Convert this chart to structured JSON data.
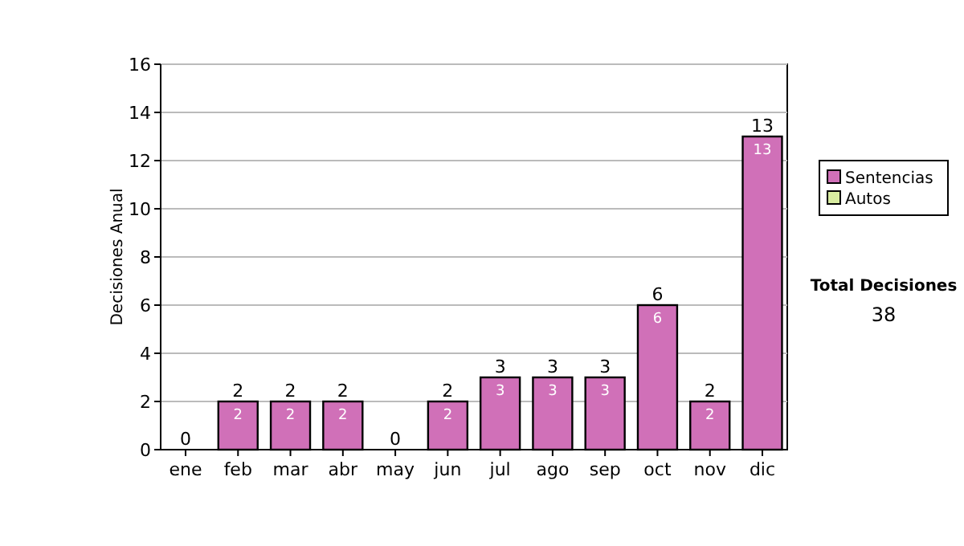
{
  "chart_data": {
    "type": "bar",
    "stacked": true,
    "ylabel": "Decisiones Anual",
    "categories": [
      "ene",
      "feb",
      "mar",
      "abr",
      "may",
      "jun",
      "jul",
      "ago",
      "sep",
      "oct",
      "nov",
      "dic"
    ],
    "series": [
      {
        "name": "Sentencias",
        "color": "#d070b8",
        "values": [
          0,
          2,
          2,
          2,
          0,
          2,
          3,
          3,
          3,
          6,
          2,
          13
        ],
        "value_labels": [
          null,
          "2",
          "2",
          "2",
          null,
          "2",
          "3",
          "3",
          "3",
          "6",
          "2",
          "13"
        ]
      },
      {
        "name": "Autos",
        "color": "#d8eca0",
        "values": [
          0,
          0,
          0,
          0,
          0,
          0,
          0,
          0,
          0,
          0,
          0,
          0
        ]
      }
    ],
    "totals": [
      "0",
      "2",
      "2",
      "2",
      "0",
      "2",
      "3",
      "3",
      "3",
      "6",
      "2",
      "13"
    ],
    "ylim": [
      0,
      16
    ],
    "yticks": [
      0,
      2,
      4,
      6,
      8,
      10,
      12,
      14,
      16
    ],
    "grid": "y",
    "legend": "right",
    "annotations": [
      "Total Decisiones",
      "38"
    ]
  }
}
